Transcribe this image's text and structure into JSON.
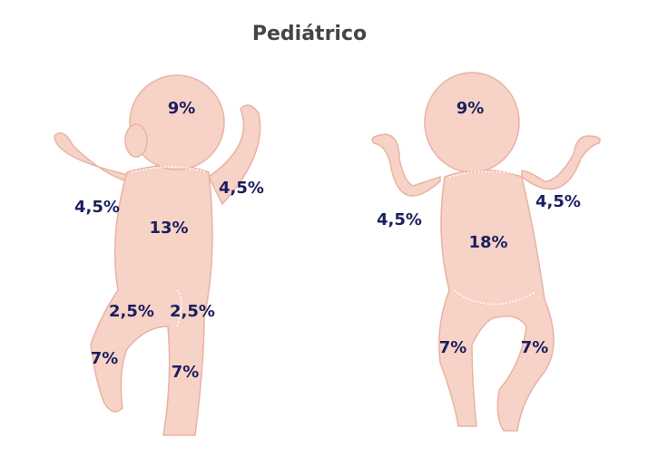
{
  "title": "Pediátrico",
  "figures": [
    {
      "labels": [
        "9%",
        "4,5%",
        "4,5%",
        "13%",
        "2,5%",
        "2,5%",
        "7%",
        "7%"
      ]
    },
    {
      "labels": [
        "9%",
        "4,5%",
        "4,5%",
        "18%",
        "7%",
        "7%"
      ]
    }
  ]
}
